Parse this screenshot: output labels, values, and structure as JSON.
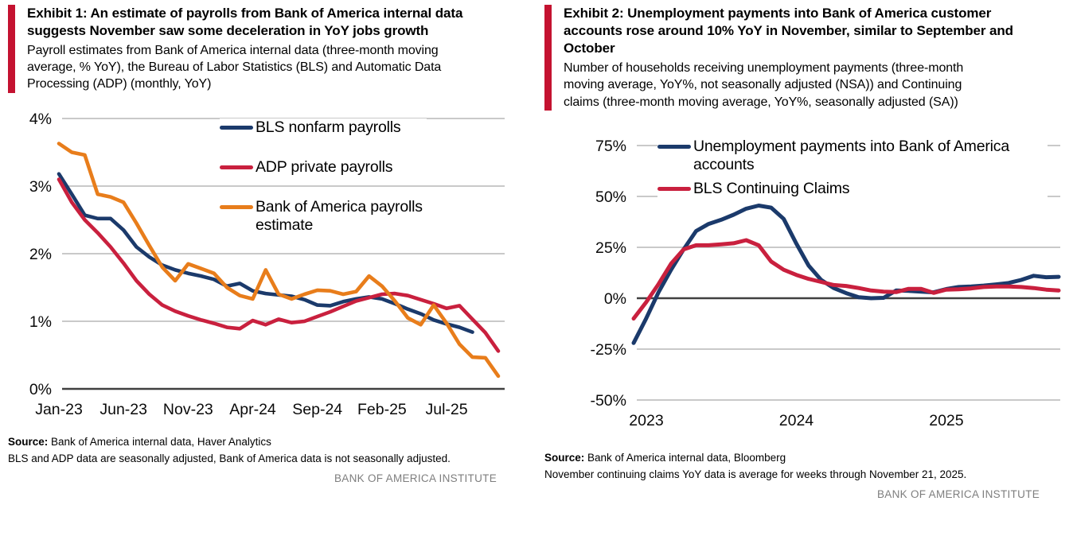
{
  "colors": {
    "accent_bar": "#C41230",
    "navy": "#1B3A6B",
    "red": "#C9203E",
    "orange": "#E87D1B",
    "gridline": "#C9C9C9",
    "zero_axis": "#404040",
    "institute_gray": "#7E7E7E"
  },
  "exhibit1": {
    "title": "Exhibit 1: An estimate of payrolls from Bank of America internal data suggests November saw some deceleration in YoY jobs growth",
    "subtitle": "Payroll estimates from Bank of America internal data (three-month moving average, % YoY), the Bureau of Labor Statistics (BLS) and Automatic Data Processing (ADP) (monthly, YoY)",
    "source_label": "Source:",
    "source_rest": " Bank of America internal data, Haver Analytics",
    "footnote": "BLS and ADP data are seasonally adjusted, Bank of America data is not seasonally adjusted.",
    "institute": "BANK OF AMERICA INSTITUTE"
  },
  "exhibit2": {
    "title": "Exhibit 2: Unemployment payments into Bank of America customer accounts rose around 10% YoY in November, similar to September and October",
    "subtitle": "Number of households receiving unemployment payments (three-month moving average, YoY%, not seasonally adjusted (NSA)) and Continuing claims (three-month moving average, YoY%, seasonally adjusted (SA))",
    "source_label": "Source:",
    "source_rest": " Bank of America internal data, Bloomberg",
    "footnote": "November continuing claims YoY data is average for weeks through November 21, 2025.",
    "institute": "BANK OF AMERICA INSTITUTE"
  },
  "chart_data": [
    {
      "id": "chart1",
      "type": "line",
      "title": "Payroll growth estimates (% YoY)",
      "grid": true,
      "legend_position": "inside-top-right",
      "categories": [
        "Jan-23",
        "Feb-23",
        "Mar-23",
        "Apr-23",
        "May-23",
        "Jun-23",
        "Jul-23",
        "Aug-23",
        "Sep-23",
        "Oct-23",
        "Nov-23",
        "Dec-23",
        "Jan-24",
        "Feb-24",
        "Mar-24",
        "Apr-24",
        "May-24",
        "Jun-24",
        "Jul-24",
        "Aug-24",
        "Sep-24",
        "Oct-24",
        "Nov-24",
        "Dec-24",
        "Jan-25",
        "Feb-25",
        "Mar-25",
        "Apr-25",
        "May-25",
        "Jun-25",
        "Jul-25",
        "Aug-25",
        "Sep-25",
        "Oct-25",
        "Nov-25"
      ],
      "x_ticks": [
        {
          "i": 0,
          "label": "Jan-23"
        },
        {
          "i": 5,
          "label": "Jun-23"
        },
        {
          "i": 10,
          "label": "Nov-23"
        },
        {
          "i": 15,
          "label": "Apr-24"
        },
        {
          "i": 20,
          "label": "Sep-24"
        },
        {
          "i": 25,
          "label": "Feb-25"
        },
        {
          "i": 30,
          "label": "Jul-25"
        }
      ],
      "ylim": [
        0,
        4
      ],
      "y_ticks": [
        {
          "v": 0,
          "label": "0%"
        },
        {
          "v": 1,
          "label": "1%"
        },
        {
          "v": 2,
          "label": "2%"
        },
        {
          "v": 3,
          "label": "3%"
        },
        {
          "v": 4,
          "label": "4%"
        }
      ],
      "series": [
        {
          "name": "BLS nonfarm payrolls",
          "color": "#1B3A6B",
          "values": [
            3.18,
            2.88,
            2.57,
            2.52,
            2.52,
            2.35,
            2.1,
            1.95,
            1.83,
            1.76,
            1.71,
            1.67,
            1.62,
            1.52,
            1.56,
            1.45,
            1.41,
            1.39,
            1.37,
            1.32,
            1.24,
            1.23,
            1.29,
            1.33,
            1.36,
            1.33,
            1.26,
            1.18,
            1.11,
            1.02,
            0.96,
            0.91,
            0.84,
            null,
            null
          ]
        },
        {
          "name": "ADP private payrolls",
          "color": "#C9203E",
          "values": [
            3.1,
            2.76,
            2.5,
            2.31,
            2.1,
            1.86,
            1.6,
            1.4,
            1.24,
            1.15,
            1.08,
            1.02,
            0.97,
            0.91,
            0.89,
            1.01,
            0.95,
            1.03,
            0.98,
            1.0,
            1.07,
            1.14,
            1.22,
            1.3,
            1.35,
            1.4,
            1.41,
            1.38,
            1.32,
            1.26,
            1.19,
            1.23,
            1.03,
            0.83,
            0.56
          ]
        },
        {
          "name": "Bank of America payrolls estimate",
          "color": "#E87D1B",
          "values": [
            3.63,
            3.5,
            3.46,
            2.88,
            2.84,
            2.76,
            2.45,
            2.12,
            1.8,
            1.6,
            1.85,
            1.78,
            1.71,
            1.5,
            1.38,
            1.33,
            1.76,
            1.4,
            1.33,
            1.4,
            1.46,
            1.45,
            1.4,
            1.44,
            1.67,
            1.52,
            1.3,
            1.05,
            0.95,
            1.24,
            0.97,
            0.66,
            0.47,
            0.46,
            0.19
          ]
        }
      ]
    },
    {
      "id": "chart2",
      "type": "line",
      "title": "Unemployment payments vs continuing claims (YoY%)",
      "grid": true,
      "legend_position": "inside-top-left",
      "categories": [
        "Jan-23",
        "Feb-23",
        "Mar-23",
        "Apr-23",
        "May-23",
        "Jun-23",
        "Jul-23",
        "Aug-23",
        "Sep-23",
        "Oct-23",
        "Nov-23",
        "Dec-23",
        "Jan-24",
        "Feb-24",
        "Mar-24",
        "Apr-24",
        "May-24",
        "Jun-24",
        "Jul-24",
        "Aug-24",
        "Sep-24",
        "Oct-24",
        "Nov-24",
        "Dec-24",
        "Jan-25",
        "Feb-25",
        "Mar-25",
        "Apr-25",
        "May-25",
        "Jun-25",
        "Jul-25",
        "Aug-25",
        "Sep-25",
        "Oct-25",
        "Nov-25"
      ],
      "x_ticks": [
        {
          "i": 0,
          "label": "2023"
        },
        {
          "i": 12,
          "label": "2024"
        },
        {
          "i": 24,
          "label": "2025"
        }
      ],
      "ylim": [
        -50,
        75
      ],
      "y_ticks": [
        {
          "v": -50,
          "label": "-50%"
        },
        {
          "v": -25,
          "label": "-25%"
        },
        {
          "v": 0,
          "label": "0%"
        },
        {
          "v": 25,
          "label": "25%"
        },
        {
          "v": 50,
          "label": "50%"
        },
        {
          "v": 75,
          "label": "75%"
        }
      ],
      "series": [
        {
          "name": "Unemployment payments into Bank of America accounts",
          "color": "#1B3A6B",
          "values": [
            -22,
            -10,
            3,
            14,
            24,
            33,
            36.5,
            38.5,
            41,
            44,
            45.5,
            44.5,
            39,
            27,
            16,
            9,
            5,
            2.5,
            0.5,
            0,
            0.2,
            3.8,
            3.6,
            3.2,
            2.9,
            4.5,
            5.5,
            5.8,
            6.2,
            6.8,
            7.5,
            9,
            11,
            10.3,
            10.5
          ]
        },
        {
          "name": "BLS Continuing Claims",
          "color": "#C9203E",
          "values": [
            -10,
            -2,
            7,
            17,
            24,
            26,
            26,
            26.5,
            27,
            28.5,
            26,
            18,
            14,
            11.5,
            9.5,
            8,
            6.5,
            6,
            5,
            3.8,
            3.2,
            3.0,
            4.6,
            4.6,
            2.6,
            4.2,
            4.4,
            4.8,
            5.5,
            5.8,
            5.8,
            5.5,
            5.0,
            4.2,
            3.8
          ]
        }
      ]
    }
  ]
}
